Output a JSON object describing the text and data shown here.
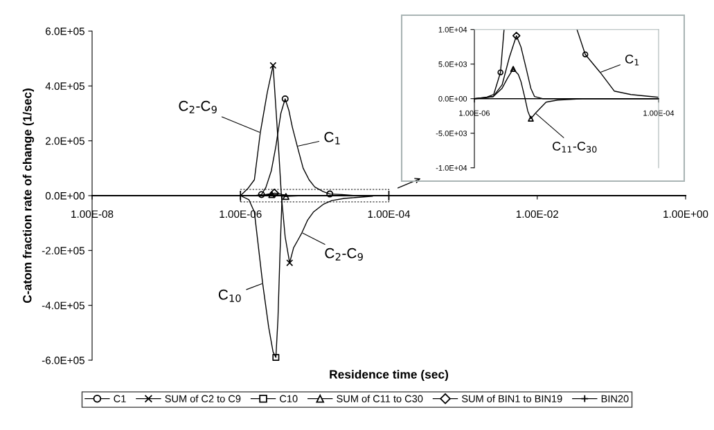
{
  "chart_data": [
    {
      "type": "line",
      "xlabel": "Residence time (sec)",
      "ylabel": "C-atom fraction rate of change (1/sec)",
      "log": "x",
      "xlim": [
        1e-08,
        1
      ],
      "ylim": [
        -600000,
        600000
      ],
      "xticks": [
        {
          "value": 1e-08,
          "label": "1.00E-08"
        },
        {
          "value": 1e-06,
          "label": "1.00E-06"
        },
        {
          "value": 0.0001,
          "label": "1.00E-04"
        },
        {
          "value": 0.01,
          "label": "1.00E-02"
        },
        {
          "value": 1,
          "label": "1.00E+00"
        }
      ],
      "yticks": [
        {
          "value": -600000,
          "label": "-6.0E+05"
        },
        {
          "value": -400000,
          "label": "-4.0E+05"
        },
        {
          "value": -200000,
          "label": "-2.0E+05"
        },
        {
          "value": 0,
          "label": "0.0E+00"
        },
        {
          "value": 200000,
          "label": "2.0E+05"
        },
        {
          "value": 400000,
          "label": "4.0E+05"
        },
        {
          "value": 600000,
          "label": "6.0E+05"
        }
      ],
      "grid": false,
      "legend": "bottom",
      "line_style": "solid",
      "series": [
        {
          "color": "#000000",
          "x": [
            1e-06,
            1.3e-06,
            1.62e-06,
            1.92e-06,
            2.2e-06,
            2.6e-06,
            3e-06,
            3.5e-06,
            4e-06,
            4.5e-06,
            5e-06,
            5.83e-06,
            7e-06,
            8.4e-06,
            1e-05,
            1.3e-05,
            1.6e-05,
            2.32e-05,
            3.3e-05,
            5e-05,
            0.0001
          ],
          "values": [
            0,
            0,
            1000,
            4000,
            30000,
            90000,
            180000,
            300000,
            353000,
            310000,
            250000,
            180000,
            100000,
            58000,
            32000,
            15000,
            6000,
            4000,
            1000,
            1000,
            0
          ]
        },
        {
          "color": "#000000",
          "x": [
            1e-06,
            1.25e-06,
            1.54e-06,
            1.85e-06,
            2.3e-06,
            2.75e-06,
            3e-06,
            3.3e-06,
            3.56e-06,
            4e-06,
            4.6e-06,
            5.2e-06,
            6e-06,
            6.74e-06,
            8e-06,
            9.6e-06,
            1.3e-05,
            1.7e-05,
            2.5e-05,
            3.5e-05,
            6e-05
          ],
          "values": [
            0,
            25000,
            58000,
            230000,
            377000,
            475000,
            320000,
            150000,
            0,
            -150000,
            -245000,
            -190000,
            -160000,
            -135000,
            -90000,
            -60000,
            -32000,
            -18000,
            -10000,
            -7000,
            -2000
          ]
        },
        {
          "color": "#000000",
          "x": [
            1e-06,
            1.3e-06,
            1.54e-06,
            1.99e-06,
            2.4e-06,
            2.75e-06,
            3e-06,
            3.2e-06,
            3.4e-06,
            3.64e-06
          ],
          "values": [
            0,
            -15000,
            -60000,
            -320000,
            -480000,
            -570000,
            -590000,
            -450000,
            -220000,
            0
          ]
        },
        {
          "color": "#000000",
          "x": [
            1e-06,
            1.6e-06,
            2e-06,
            2.3e-06,
            2.64e-06,
            3e-06,
            3.2e-06,
            3.55e-06,
            3.8e-06,
            4.1e-06,
            4.6e-06,
            6e-06,
            8e-06,
            1.5e-05
          ],
          "values": [
            0,
            0,
            2000,
            3000,
            4000,
            4000,
            3000,
            0,
            -2000,
            -3000,
            -2000,
            -1000,
            0,
            0
          ]
        },
        {
          "color": "#000000",
          "x": [
            1e-06,
            1.6e-06,
            2e-06,
            2.4e-06,
            2.86e-06,
            3.2e-06,
            3.66e-06,
            4.1e-06,
            4.5e-06,
            5.5e-06
          ],
          "values": [
            0,
            0,
            2000,
            6000,
            9000,
            8000,
            4000,
            2000,
            0,
            0
          ]
        },
        {
          "type": "scatter",
          "name": "C1",
          "color": "#000000",
          "marker": "circle",
          "x": [
            1.92e-06,
            4e-06,
            1.6e-05
          ],
          "values": [
            4000,
            353000,
            6000
          ]
        },
        {
          "type": "scatter",
          "name": "SUM of C2 to C9",
          "color": "#000000",
          "marker": "cross",
          "x": [
            2.75e-06,
            4.6e-06
          ],
          "values": [
            475000,
            -245000
          ]
        },
        {
          "type": "scatter",
          "name": "C10",
          "color": "#000000",
          "marker": "square",
          "x": [
            3e-06
          ],
          "values": [
            -590000
          ]
        },
        {
          "type": "scatter",
          "name": "SUM of C11 to C30",
          "color": "#000000",
          "marker": "triangle",
          "x": [
            2.64e-06,
            4.1e-06
          ],
          "values": [
            4000,
            -3000
          ]
        },
        {
          "type": "scatter",
          "name": "SUM of BIN1 to BIN19",
          "color": "#000000",
          "marker": "diamond",
          "x": [
            2.86e-06
          ],
          "values": [
            9000
          ]
        },
        {
          "type": "scatter",
          "name": "BIN20",
          "color": "#000000",
          "marker": "plus",
          "x": [
            1e-06,
            0.0001
          ],
          "values": [
            0,
            0
          ]
        }
      ],
      "annotations": [
        {
          "text": "C$_{2}$-C$_{9}$",
          "x": 1.85e-06,
          "y": 230000
        },
        {
          "text": "C$_{1}$",
          "x": 5.83e-06,
          "y": 180000
        },
        {
          "text": "C$_{2}$-C$_{9}$",
          "x": 6.74e-06,
          "y": -135000
        },
        {
          "text": "C$_{10}$",
          "x": 1.99e-06,
          "y": -320000
        }
      ]
    },
    {
      "type": "line",
      "log": "x",
      "xlim": [
        1e-06,
        0.0001
      ],
      "ylim": [
        -10000,
        10000
      ],
      "xticks": [
        {
          "value": 1e-06,
          "label": "1.00E-06"
        },
        {
          "value": 0.0001,
          "label": "1.00E-04"
        }
      ],
      "yticks": [
        {
          "value": -10000,
          "label": "-1.0E+04"
        },
        {
          "value": -5000,
          "label": "-5.0E+03"
        },
        {
          "value": 0,
          "label": "0.0E+00"
        },
        {
          "value": 5000,
          "label": "5.0E+03"
        },
        {
          "value": 10000,
          "label": "1.0E+04"
        }
      ],
      "grid": false,
      "line_style": "solid",
      "series": [
        {
          "color": "#000000",
          "x": [
            1e-06,
            1.3e-06,
            1.62e-06,
            1.92e-06,
            2.1e-06
          ],
          "values": [
            0,
            100,
            600,
            3800,
            10000
          ]
        },
        {
          "color": "#000000",
          "x": [
            1.3e-05,
            1.6e-05,
            2.32e-05,
            3.3e-05,
            5e-05,
            0.0001
          ],
          "values": [
            10000,
            6400,
            3800,
            1100,
            600,
            200
          ]
        },
        {
          "color": "#000000",
          "x": [
            1e-06,
            1.6e-06,
            2e-06,
            2.3e-06,
            2.64e-06,
            3e-06,
            3.2e-06,
            3.55e-06,
            3.8e-06,
            4.1e-06,
            4.6e-06,
            6e-06,
            8e-06,
            1.5e-05,
            0.0001
          ],
          "values": [
            0,
            300,
            1500,
            3000,
            4300,
            3500,
            2500,
            0,
            -1800,
            -2900,
            -2100,
            -500,
            -200,
            0,
            0
          ]
        },
        {
          "color": "#000000",
          "x": [
            1e-06,
            1.6e-06,
            2e-06,
            2.4e-06,
            2.86e-06,
            3.2e-06,
            3.66e-06,
            4.1e-06,
            4.5e-06,
            5.5e-06,
            0.0001
          ],
          "values": [
            0,
            300,
            2000,
            6000,
            9100,
            7500,
            4300,
            1500,
            300,
            0,
            0
          ]
        },
        {
          "type": "scatter",
          "color": "#000000",
          "marker": "circle",
          "x": [
            1.92e-06,
            1.6e-05
          ],
          "values": [
            3800,
            6400
          ]
        },
        {
          "type": "scatter",
          "color": "#000000",
          "marker": "diamond",
          "x": [
            2.86e-06
          ],
          "values": [
            9100
          ]
        },
        {
          "type": "scatter",
          "color": "#000000",
          "marker": "triangle",
          "x": [
            2.64e-06,
            4.1e-06
          ],
          "values": [
            4300,
            -2900
          ]
        }
      ],
      "annotations": [
        {
          "text": "C$_{1}$",
          "x": 2.32e-05,
          "y": 3800
        },
        {
          "text": "C$_{11}$-C$_{30}$",
          "x": 4.6e-06,
          "y": -2100
        }
      ]
    }
  ]
}
